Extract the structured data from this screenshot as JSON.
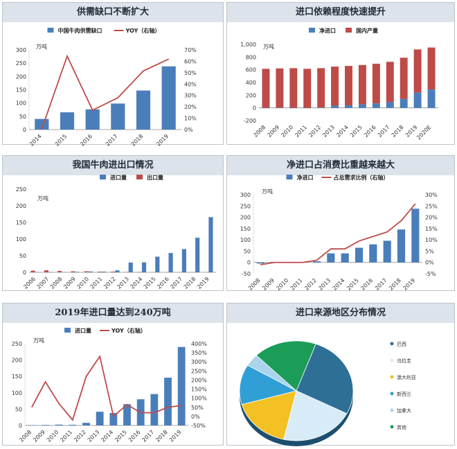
{
  "colors": {
    "blue": "#4a7ebb",
    "red": "#be4b48",
    "title_bg": "#dce3ea"
  },
  "chart_data": [
    {
      "id": "p1",
      "type": "bar+line",
      "title": "供需缺口不断扩大",
      "unit": "万吨",
      "categories": [
        "2014",
        "2015",
        "2016",
        "2017",
        "2018",
        "2019"
      ],
      "series": [
        {
          "name": "中国牛肉供需缺口",
          "type": "bar",
          "axis": "left",
          "values": [
            40,
            65,
            76,
            98,
            147,
            238
          ]
        },
        {
          "name": "YOY（右轴）",
          "type": "line",
          "axis": "right",
          "values": [
            0.5,
            64.5,
            17,
            28,
            51.5,
            62
          ]
        }
      ],
      "ylim": [
        0,
        300
      ],
      "yticks": [
        "0",
        "50",
        "100",
        "150",
        "200",
        "250",
        "300"
      ],
      "y2lim": [
        0,
        70
      ],
      "y2ticks": [
        "0%",
        "10%",
        "20%",
        "30%",
        "40%",
        "50%",
        "60%",
        "70%"
      ]
    },
    {
      "id": "p2",
      "type": "stacked-bar",
      "title": "进口依赖程度快速提升",
      "unit": "万吨",
      "categories": [
        "2008",
        "2009",
        "2010",
        "2011",
        "2012",
        "2013",
        "2014",
        "2015",
        "2016",
        "2017",
        "2018",
        "2019",
        "2020E"
      ],
      "series": [
        {
          "name": "净进口",
          "type": "bar",
          "values": [
            -5,
            3,
            0,
            0,
            5,
            35,
            40,
            55,
            70,
            90,
            140,
            240,
            290
          ]
        },
        {
          "name": "国内产量",
          "type": "bar",
          "values": [
            615,
            618,
            625,
            615,
            620,
            615,
            620,
            620,
            625,
            635,
            650,
            680,
            660
          ]
        }
      ],
      "ylim": [
        -200,
        1000
      ],
      "yticks": [
        "-200",
        "0",
        "200",
        "400",
        "600",
        "800",
        "1,000"
      ]
    },
    {
      "id": "p3",
      "type": "bar",
      "title": "我国牛肉进出口情况",
      "unit": "万吨",
      "categories": [
        "2006",
        "2007",
        "2008",
        "2009",
        "2010",
        "2011",
        "2012",
        "2013",
        "2014",
        "2015",
        "2016",
        "2017",
        "2018",
        "2019"
      ],
      "series": [
        {
          "name": "进口量",
          "type": "bar",
          "values": [
            1,
            1,
            0.5,
            1.5,
            2.5,
            2,
            6,
            29.5,
            30,
            47,
            58,
            70,
            104,
            166
          ]
        },
        {
          "name": "出口量",
          "type": "bar",
          "values": [
            5,
            6,
            4,
            3,
            3,
            2,
            2,
            1,
            1,
            0.5,
            0.5,
            0.5,
            0.5,
            0.5
          ]
        }
      ],
      "ylim": [
        0,
        250
      ],
      "yticks": [
        "0",
        "50",
        "100",
        "150",
        "200",
        "250"
      ]
    },
    {
      "id": "p4",
      "type": "bar+line",
      "title": "净进口占消费比重越来越大",
      "unit": "万吨",
      "categories": [
        "2008",
        "2009",
        "2010",
        "2011",
        "2012",
        "2013",
        "2014",
        "2015",
        "2016",
        "2017",
        "2018",
        "2019"
      ],
      "series": [
        {
          "name": "净进口",
          "type": "bar",
          "axis": "left",
          "values": [
            -5,
            2,
            0,
            0,
            5,
            40,
            40,
            65,
            80,
            96,
            146,
            238
          ]
        },
        {
          "name": "占总需求比例（右轴）",
          "type": "line",
          "axis": "right",
          "values": [
            -1,
            0,
            0,
            0,
            1,
            6,
            6,
            9.5,
            11.5,
            13.5,
            18.5,
            26
          ]
        }
      ],
      "ylim": [
        -50,
        300
      ],
      "yticks": [
        "-50",
        "0",
        "50",
        "100",
        "150",
        "200",
        "250",
        "300"
      ],
      "y2lim": [
        -5,
        30
      ],
      "y2ticks": [
        "-5%",
        "0%",
        "5%",
        "10%",
        "15%",
        "20%",
        "25%",
        "30%"
      ]
    },
    {
      "id": "p5",
      "type": "bar+line",
      "title": "2019年进口量达到240万吨",
      "unit": "万吨",
      "categories": [
        "2008",
        "2009",
        "2010",
        "2011",
        "2012",
        "2013",
        "2014",
        "2015",
        "2016",
        "2017",
        "2018",
        "2019"
      ],
      "series": [
        {
          "name": "进口量",
          "type": "bar",
          "axis": "left",
          "values": [
            0.5,
            1.5,
            2.5,
            2,
            8,
            42,
            38,
            65,
            80,
            96,
            146,
            240
          ]
        },
        {
          "name": "YOY（右轴）",
          "type": "line",
          "axis": "right",
          "values": [
            50,
            190,
            70,
            -20,
            220,
            330,
            0,
            65,
            20,
            20,
            50,
            60
          ]
        }
      ],
      "ylim": [
        0,
        250
      ],
      "yticks": [
        "0",
        "50",
        "100",
        "150",
        "200",
        "250"
      ],
      "y2lim": [
        -50,
        400
      ],
      "y2ticks": [
        "-50%",
        "0%",
        "50%",
        "100%",
        "150%",
        "200%",
        "250%",
        "300%",
        "350%",
        "400%"
      ]
    },
    {
      "id": "p6",
      "type": "pie",
      "title": "进口来源地区分布情况",
      "slices": [
        {
          "name": "巴西",
          "value": 27,
          "color": "#2e6f96"
        },
        {
          "name": "乌拉圭",
          "value": 21,
          "color": "#d8ecf7"
        },
        {
          "name": "澳大利亚",
          "value": 17,
          "color": "#f3c123"
        },
        {
          "name": "新西兰",
          "value": 13,
          "color": "#2f9fd6"
        },
        {
          "name": "加拿大",
          "value": 4,
          "color": "#a9d4ec"
        },
        {
          "name": "其他",
          "value": 18,
          "color": "#1b9d57"
        }
      ]
    }
  ]
}
